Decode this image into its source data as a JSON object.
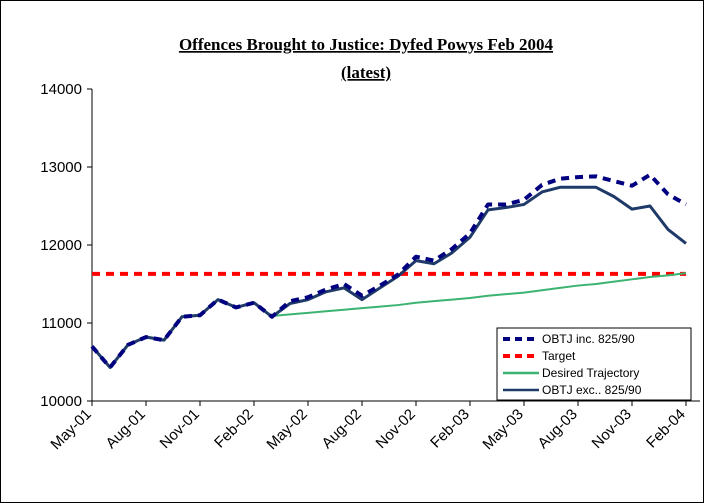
{
  "chart_data": {
    "type": "line",
    "title": "Offences Brought to Justice: Dyfed Powys Feb 2004",
    "subtitle": "(latest)",
    "categories": [
      "May-01",
      null,
      null,
      "Aug-01",
      null,
      null,
      "Nov-01",
      null,
      null,
      "Feb-02",
      null,
      null,
      "May-02",
      null,
      null,
      "Aug-02",
      null,
      null,
      "Nov-02",
      null,
      null,
      "Feb-03",
      null,
      null,
      "May-03",
      null,
      null,
      "Aug-03",
      null,
      null,
      "Nov-03",
      null,
      null,
      "Feb-04"
    ],
    "ylim": [
      10000,
      14000
    ],
    "yticks": [
      10000,
      11000,
      12000,
      13000,
      14000
    ],
    "grid": false,
    "legend": "right",
    "series": [
      {
        "name": "OBTJ inc. 825/90",
        "color": "#000080",
        "style": "dashed",
        "values": [
          10700,
          10430,
          10720,
          10820,
          10780,
          11080,
          11100,
          11300,
          11200,
          11260,
          11080,
          11280,
          11330,
          11430,
          11500,
          11350,
          11480,
          11620,
          11850,
          11800,
          11950,
          12150,
          12520,
          12520,
          12580,
          12770,
          12850,
          12870,
          12880,
          12820,
          12760,
          12900,
          12650,
          12520
        ]
      },
      {
        "name": "Target",
        "color": "#ff0000",
        "style": "dashed",
        "values": [
          11630,
          11630,
          11630,
          11630,
          11630,
          11630,
          11630,
          11630,
          11630,
          11630,
          11630,
          11630,
          11630,
          11630,
          11630,
          11630,
          11630,
          11630,
          11630,
          11630,
          11630,
          11630,
          11630,
          11630,
          11630,
          11630,
          11630,
          11630,
          11630,
          11630,
          11630,
          11630,
          11630,
          11630
        ]
      },
      {
        "name": "Desired Trajectory",
        "color": "#3cb371",
        "style": "solid",
        "values": [
          null,
          null,
          null,
          null,
          null,
          null,
          null,
          null,
          null,
          null,
          11090,
          11110,
          11130,
          11150,
          11170,
          11190,
          11210,
          11230,
          11260,
          11280,
          11300,
          11320,
          11350,
          11370,
          11390,
          11420,
          11450,
          11480,
          11500,
          11530,
          11560,
          11590,
          11610,
          11640
        ]
      },
      {
        "name": "OBTJ exc.. 825/90",
        "color": "#1f3a68",
        "style": "solid",
        "values": [
          10700,
          10430,
          10720,
          10820,
          10780,
          11080,
          11100,
          11300,
          11200,
          11260,
          11080,
          11250,
          11300,
          11400,
          11450,
          11300,
          11450,
          11600,
          11800,
          11760,
          11900,
          12100,
          12450,
          12480,
          12520,
          12680,
          12740,
          12740,
          12740,
          12620,
          12460,
          12500,
          12200,
          12020
        ]
      }
    ]
  }
}
